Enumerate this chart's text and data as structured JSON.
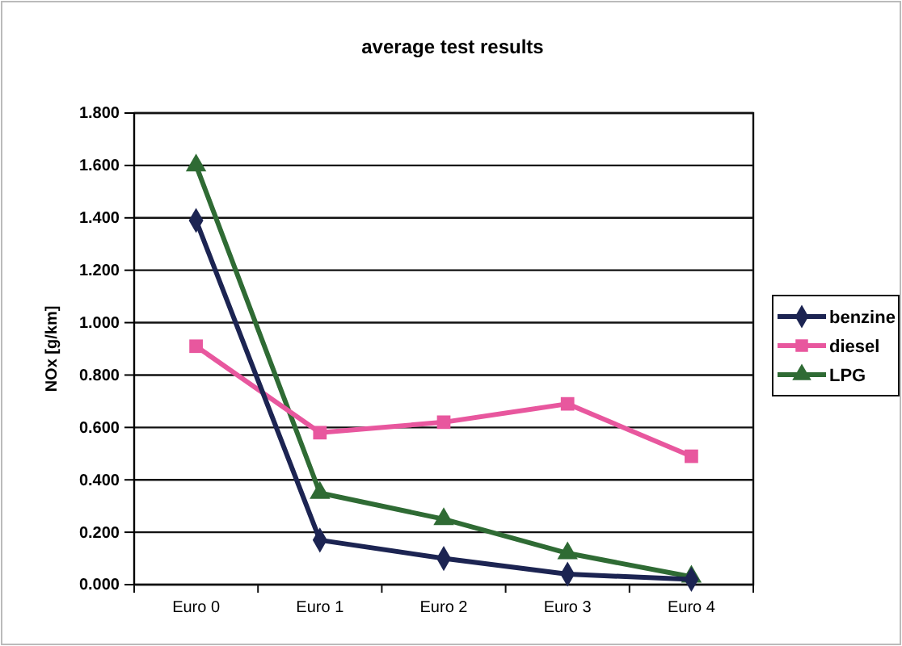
{
  "chart_data": {
    "type": "line",
    "title": "average test results",
    "ylabel": "NOx [g/km]",
    "categories": [
      "Euro 0",
      "Euro 1",
      "Euro 2",
      "Euro 3",
      "Euro 4"
    ],
    "series": [
      {
        "name": "benzine",
        "color": "#1c2452",
        "marker": "diamond",
        "values": [
          1.39,
          0.17,
          0.1,
          0.04,
          0.02
        ]
      },
      {
        "name": "diesel",
        "color": "#e8579e",
        "marker": "square",
        "values": [
          0.91,
          0.58,
          0.62,
          0.69,
          0.49
        ]
      },
      {
        "name": "LPG",
        "color": "#2f6b34",
        "marker": "triangle",
        "values": [
          1.6,
          0.35,
          0.25,
          0.12,
          0.03
        ]
      }
    ],
    "ylim": [
      0,
      1.8
    ],
    "yticks": [
      {
        "value": 0,
        "label": "0.000"
      },
      {
        "value": 0.2,
        "label": "0.200"
      },
      {
        "value": 0.4,
        "label": "0.400"
      },
      {
        "value": 0.6,
        "label": "0.600"
      },
      {
        "value": 0.8,
        "label": "0.800"
      },
      {
        "value": 1.0,
        "label": "1.000"
      },
      {
        "value": 1.2,
        "label": "1.200"
      },
      {
        "value": 1.4,
        "label": "1.400"
      },
      {
        "value": 1.6,
        "label": "1.600"
      },
      {
        "value": 1.8,
        "label": "1.800"
      }
    ],
    "grid": "y",
    "legend": "right"
  }
}
